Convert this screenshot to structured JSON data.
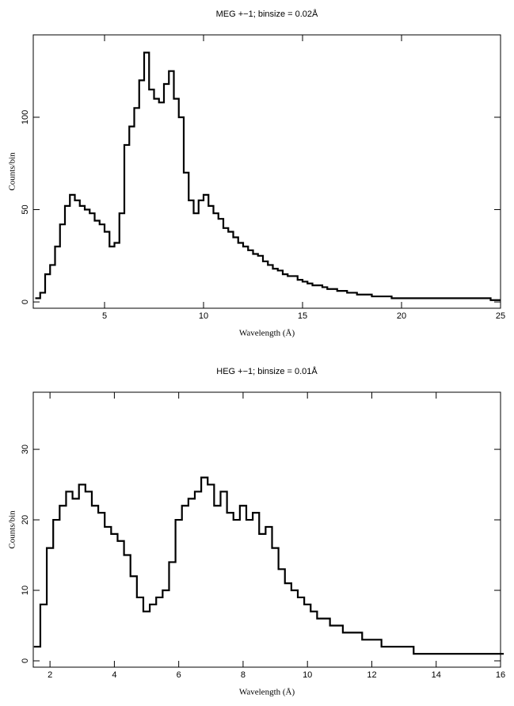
{
  "chart_data": [
    {
      "type": "line",
      "title": "MEG +−1; binsize = 0.02Å",
      "x_label": "Wavelength (Å)",
      "y_label": "Counts/bin",
      "color": "#000000",
      "x": [
        1.5,
        1.75,
        2,
        2.25,
        2.5,
        2.75,
        3,
        3.25,
        3.5,
        3.75,
        4,
        4.25,
        4.5,
        4.75,
        5,
        5.25,
        5.5,
        5.75,
        6,
        6.25,
        6.5,
        6.75,
        7,
        7.25,
        7.5,
        7.75,
        8,
        8.25,
        8.5,
        8.75,
        9,
        9.25,
        9.5,
        9.75,
        10,
        10.25,
        10.5,
        10.75,
        11,
        11.25,
        11.5,
        11.75,
        12,
        12.25,
        12.5,
        12.75,
        13,
        13.25,
        13.5,
        13.75,
        14,
        14.25,
        14.5,
        14.75,
        15,
        15.25,
        15.5,
        15.75,
        16,
        16.25,
        16.5,
        16.75,
        17,
        17.25,
        17.5,
        17.75,
        18,
        18.25,
        18.5,
        18.75,
        19,
        19.25,
        19.5,
        19.75,
        20,
        20.25,
        20.5,
        20.75,
        21,
        21.25,
        21.5,
        21.75,
        22,
        22.25,
        22.5,
        22.75,
        23,
        23.25,
        23.5,
        23.75,
        24,
        24.25,
        24.5,
        24.75
      ],
      "values": [
        2,
        5,
        15,
        20,
        30,
        42,
        52,
        58,
        55,
        52,
        50,
        48,
        44,
        42,
        38,
        30,
        32,
        48,
        85,
        95,
        105,
        120,
        135,
        115,
        110,
        108,
        118,
        125,
        110,
        100,
        70,
        55,
        48,
        55,
        58,
        52,
        48,
        45,
        40,
        38,
        35,
        32,
        30,
        28,
        26,
        25,
        22,
        20,
        18,
        17,
        15,
        14,
        14,
        12,
        11,
        10,
        9,
        9,
        8,
        7,
        7,
        6,
        6,
        5,
        5,
        4,
        4,
        4,
        3,
        3,
        3,
        3,
        2,
        2,
        2,
        2,
        2,
        2,
        2,
        2,
        2,
        2,
        2,
        2,
        2,
        2,
        2,
        2,
        2,
        2,
        2,
        2,
        1,
        1
      ],
      "xlim": [
        1.4,
        25
      ],
      "ylim": [
        -3.4,
        144.6
      ],
      "xticks": [
        5,
        10,
        15,
        20,
        25
      ],
      "yticks": [
        0,
        50,
        100
      ]
    },
    {
      "type": "line",
      "title": "HEG +−1; binsize = 0.01Å",
      "x_label": "Wavelength (Å)",
      "y_label": "Counts/bin",
      "color": "#000000",
      "x": [
        1.5,
        1.7,
        1.9,
        2.1,
        2.3,
        2.5,
        2.7,
        2.9,
        3.1,
        3.3,
        3.5,
        3.7,
        3.9,
        4.1,
        4.3,
        4.5,
        4.7,
        4.9,
        5.1,
        5.3,
        5.5,
        5.7,
        5.9,
        6.1,
        6.3,
        6.5,
        6.7,
        6.9,
        7.1,
        7.3,
        7.5,
        7.7,
        7.9,
        8.1,
        8.3,
        8.5,
        8.7,
        8.9,
        9.1,
        9.3,
        9.5,
        9.7,
        9.9,
        10.1,
        10.3,
        10.5,
        10.7,
        10.9,
        11.1,
        11.3,
        11.5,
        11.7,
        11.9,
        12.1,
        12.3,
        12.5,
        12.7,
        12.9,
        13.1,
        13.3,
        13.5,
        13.7,
        13.9,
        14.1,
        14.3,
        14.5,
        14.7,
        14.9,
        15.1,
        15.3,
        15.5,
        15.7,
        15.9
      ],
      "values": [
        2,
        8,
        16,
        20,
        22,
        24,
        23,
        25,
        24,
        22,
        21,
        19,
        18,
        17,
        15,
        12,
        9,
        7,
        8,
        9,
        10,
        14,
        20,
        22,
        23,
        24,
        26,
        25,
        22,
        24,
        21,
        20,
        22,
        20,
        21,
        18,
        19,
        16,
        13,
        11,
        10,
        9,
        8,
        7,
        6,
        6,
        5,
        5,
        4,
        4,
        4,
        3,
        3,
        3,
        2,
        2,
        2,
        2,
        2,
        1,
        1,
        1,
        1,
        1,
        1,
        1,
        1,
        1,
        1,
        1,
        1,
        1,
        1
      ],
      "xlim": [
        1.48,
        16
      ],
      "ylim": [
        -0.9,
        38.1
      ],
      "xticks": [
        2,
        4,
        6,
        8,
        10,
        12,
        14,
        16
      ],
      "yticks": [
        0,
        10,
        20,
        30
      ]
    }
  ]
}
